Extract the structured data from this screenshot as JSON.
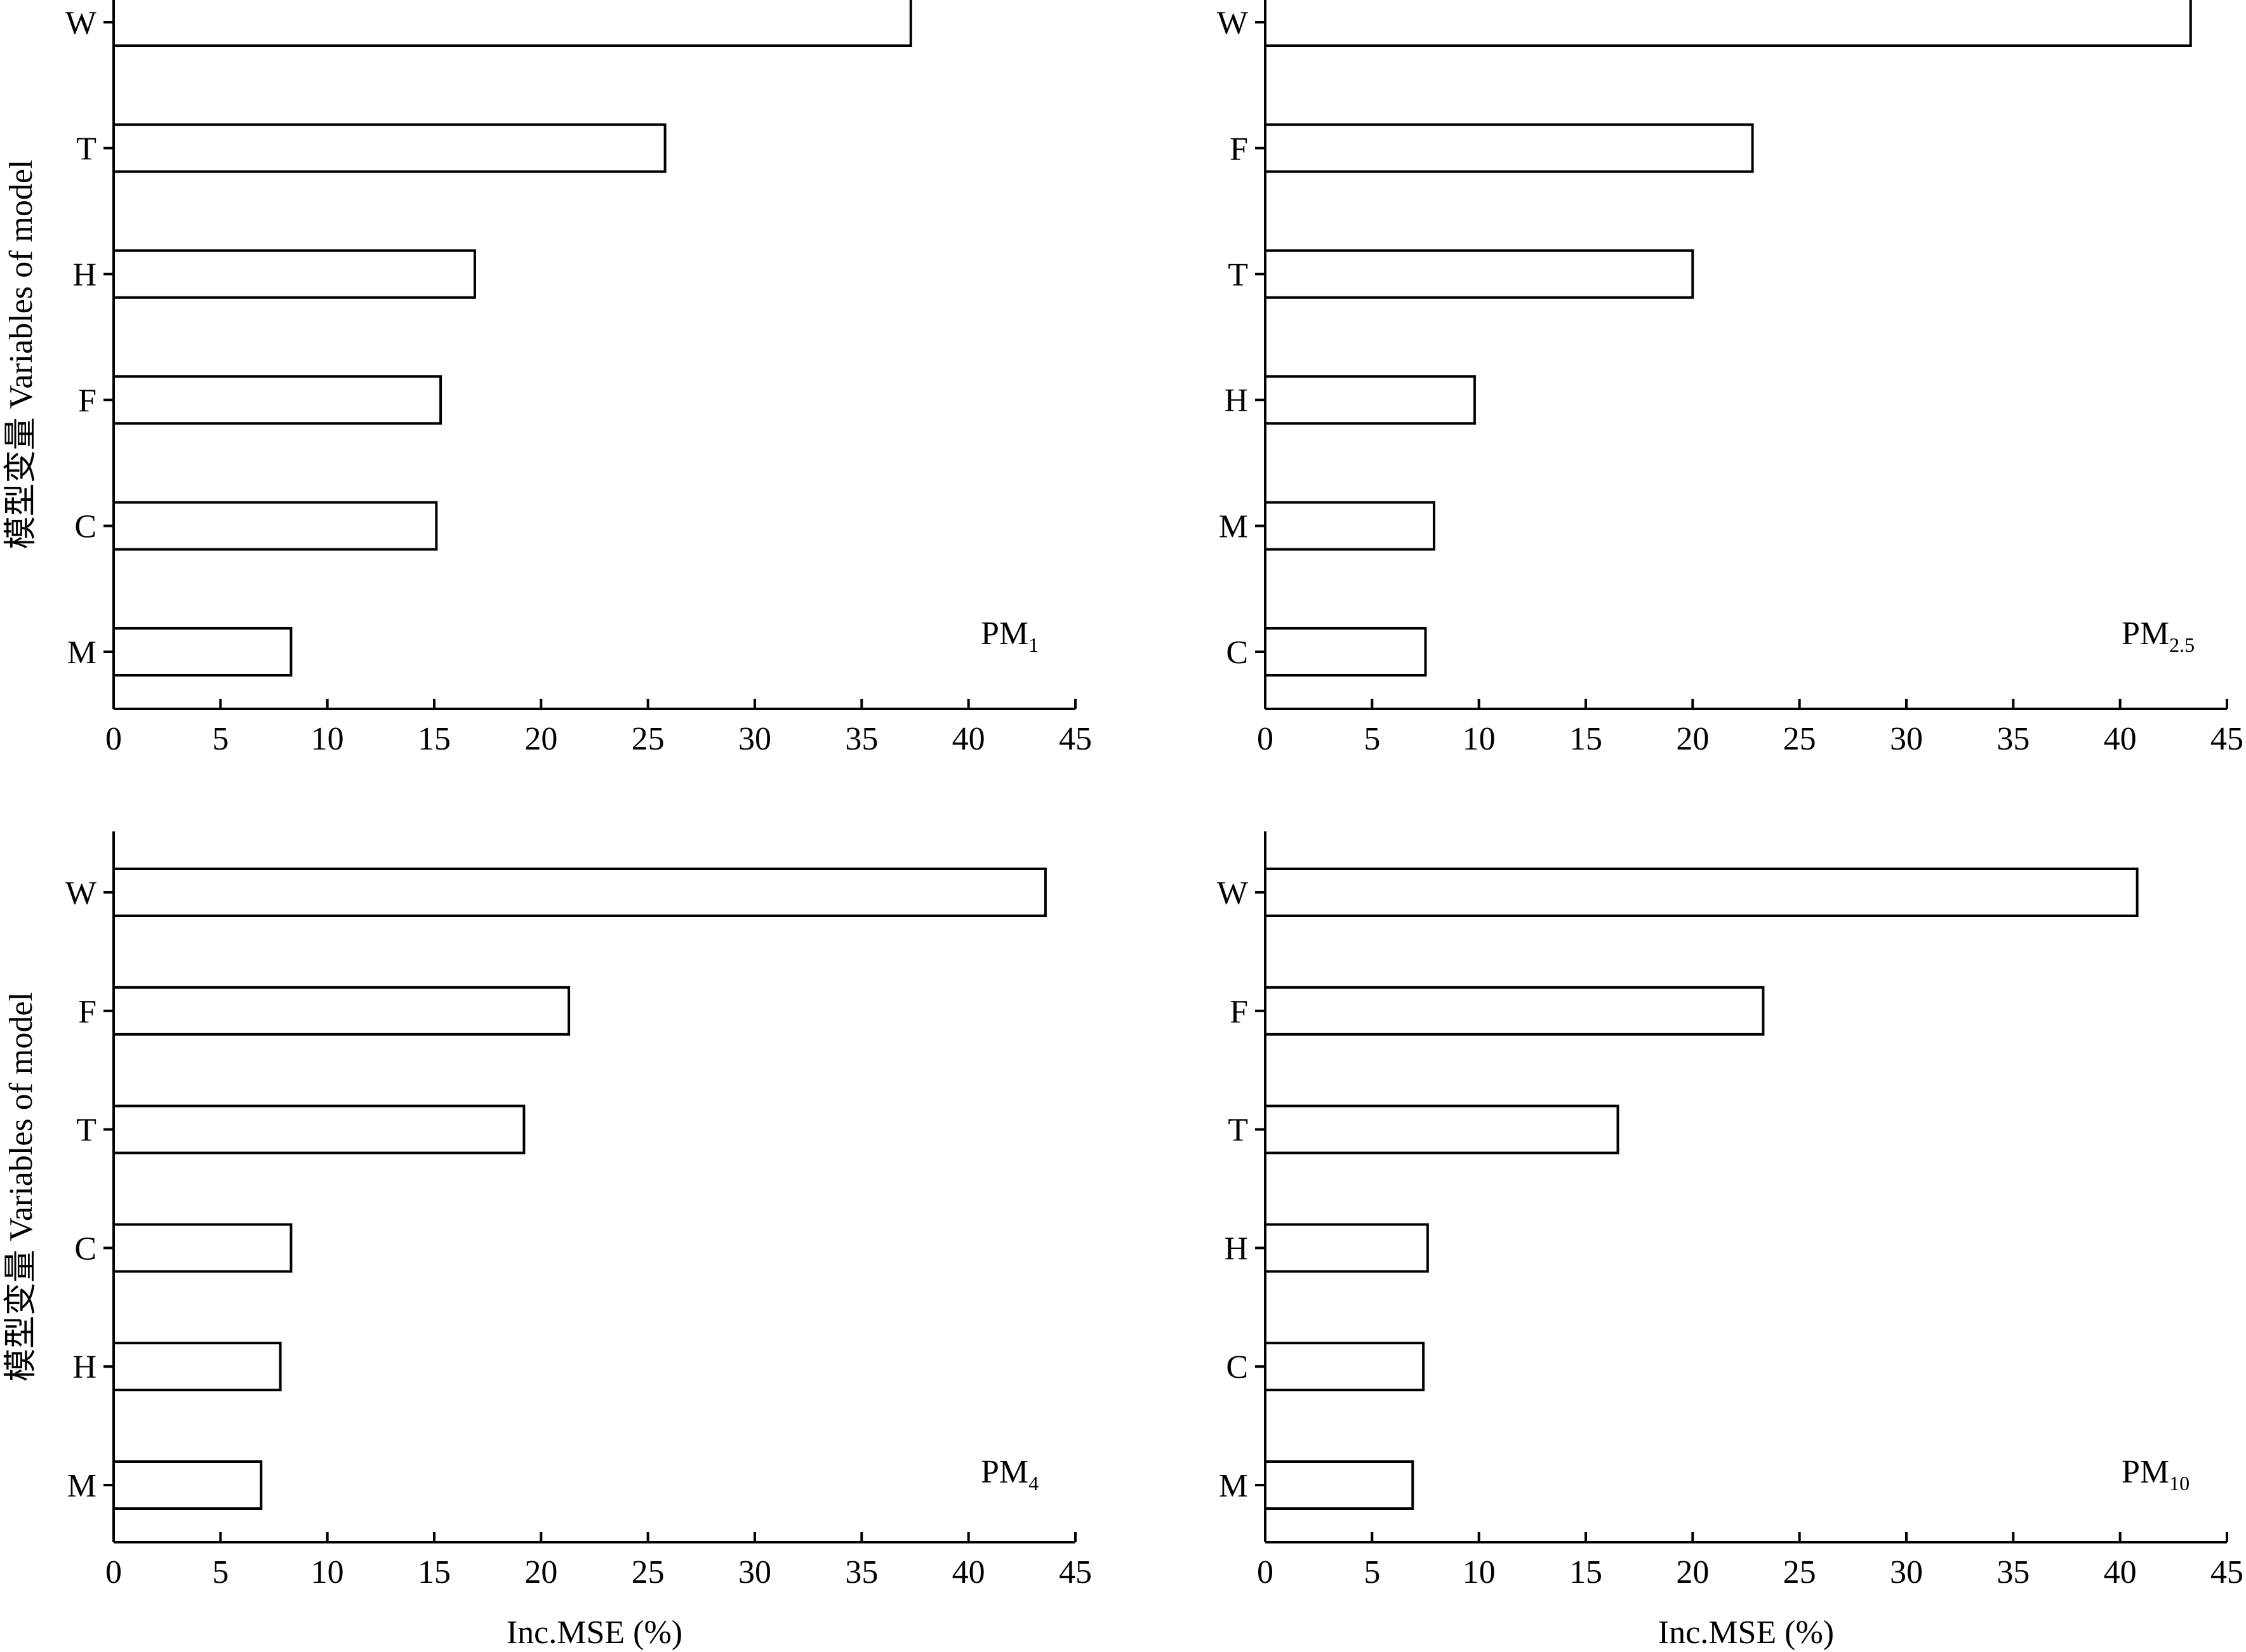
{
  "chart_data": [
    {
      "type": "bar",
      "orientation": "horizontal",
      "panel_label": "PM",
      "panel_label_sub": "1",
      "categories": [
        "W",
        "T",
        "H",
        "F",
        "C",
        "M"
      ],
      "values": [
        37.3,
        25.8,
        16.9,
        15.3,
        15.1,
        8.3
      ],
      "xlim": [
        0,
        45
      ],
      "xticks": [
        0,
        5,
        10,
        15,
        20,
        25,
        30,
        35,
        40,
        45
      ],
      "xlabel": "",
      "ylabel": "模型变量  Variables of model"
    },
    {
      "type": "bar",
      "orientation": "horizontal",
      "panel_label": "PM",
      "panel_label_sub": "2.5",
      "categories": [
        "W",
        "F",
        "T",
        "H",
        "M",
        "C"
      ],
      "values": [
        43.3,
        22.8,
        20.0,
        9.8,
        7.9,
        7.5
      ],
      "xlim": [
        0,
        45
      ],
      "xticks": [
        0,
        5,
        10,
        15,
        20,
        25,
        30,
        35,
        40,
        45
      ],
      "xlabel": "",
      "ylabel": ""
    },
    {
      "type": "bar",
      "orientation": "horizontal",
      "panel_label": "PM",
      "panel_label_sub": "4",
      "categories": [
        "W",
        "F",
        "T",
        "C",
        "H",
        "M"
      ],
      "values": [
        43.6,
        21.3,
        19.2,
        8.3,
        7.8,
        6.9
      ],
      "xlim": [
        0,
        45
      ],
      "xticks": [
        0,
        5,
        10,
        15,
        20,
        25,
        30,
        35,
        40,
        45
      ],
      "xlabel": "Inc.MSE (%)",
      "ylabel": "模型变量  Variables of model"
    },
    {
      "type": "bar",
      "orientation": "horizontal",
      "panel_label": "PM",
      "panel_label_sub": "10",
      "categories": [
        "W",
        "F",
        "T",
        "H",
        "C",
        "M"
      ],
      "values": [
        40.8,
        23.3,
        16.5,
        7.6,
        7.4,
        6.9
      ],
      "xlim": [
        0,
        45
      ],
      "xticks": [
        0,
        5,
        10,
        15,
        20,
        25,
        30,
        35,
        40,
        45
      ],
      "xlabel": "Inc.MSE (%)",
      "ylabel": ""
    }
  ]
}
